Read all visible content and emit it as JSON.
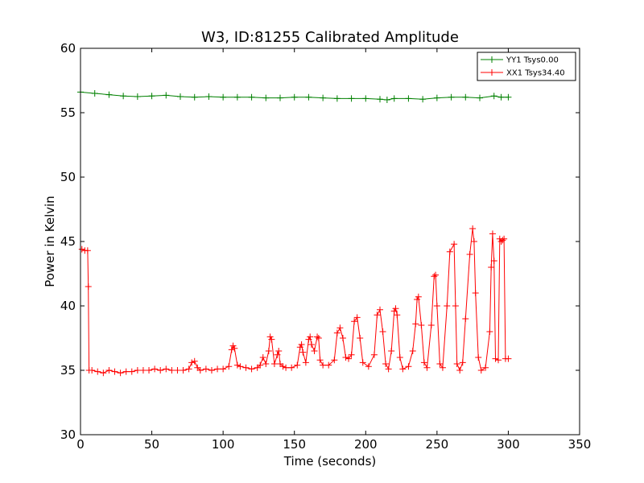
{
  "chart_data": {
    "type": "line",
    "title": "W3, ID:81255 Calibrated Amplitude",
    "xlabel": "Time (seconds)",
    "ylabel": "Power in Kelvin",
    "xlim": [
      0,
      350
    ],
    "ylim": [
      30,
      60
    ],
    "xticks": [
      0,
      50,
      100,
      150,
      200,
      250,
      300,
      350
    ],
    "yticks": [
      30,
      35,
      40,
      45,
      50,
      55,
      60
    ],
    "grid": false,
    "legend_position": "top-right",
    "marker": "+",
    "series": [
      {
        "name": "YY1 Tsys0.00",
        "color": "#008000",
        "x": [
          0,
          10,
          20,
          30,
          40,
          50,
          60,
          70,
          80,
          90,
          100,
          110,
          120,
          130,
          140,
          150,
          160,
          170,
          180,
          190,
          200,
          210,
          215,
          220,
          230,
          240,
          250,
          260,
          270,
          280,
          290,
          295,
          300
        ],
        "y": [
          56.6,
          56.5,
          56.4,
          56.3,
          56.25,
          56.3,
          56.35,
          56.25,
          56.2,
          56.25,
          56.2,
          56.2,
          56.2,
          56.15,
          56.15,
          56.2,
          56.2,
          56.15,
          56.1,
          56.1,
          56.1,
          56.05,
          56.0,
          56.1,
          56.1,
          56.05,
          56.15,
          56.2,
          56.2,
          56.15,
          56.3,
          56.2,
          56.2
        ]
      },
      {
        "name": "XX1 Tsys34.40",
        "color": "#ff0000",
        "x": [
          1,
          3,
          5,
          5.5,
          6,
          8,
          12,
          16,
          20,
          24,
          28,
          32,
          36,
          40,
          44,
          48,
          52,
          56,
          60,
          64,
          68,
          72,
          76,
          78,
          80,
          82,
          84,
          88,
          92,
          96,
          100,
          104,
          106,
          107,
          108,
          110,
          112,
          116,
          120,
          124,
          126,
          128,
          130,
          132,
          133,
          134,
          136,
          138,
          139,
          140,
          142,
          144,
          148,
          152,
          154,
          155,
          156,
          158,
          160,
          161,
          162,
          164,
          166,
          167,
          168,
          170,
          174,
          178,
          180,
          182,
          184,
          186,
          188,
          190,
          192,
          194,
          196,
          198,
          202,
          206,
          208,
          210,
          212,
          214,
          216,
          218,
          220,
          221,
          222,
          224,
          226,
          230,
          233,
          235,
          236,
          237,
          239,
          241,
          243,
          246,
          248,
          249,
          250,
          252,
          254,
          257,
          259,
          262,
          263,
          264,
          266,
          268,
          270,
          273,
          275,
          276,
          277,
          279,
          281,
          284,
          287,
          288,
          289,
          290,
          291,
          293,
          294,
          295,
          296,
          297,
          298,
          300
        ],
        "y": [
          44.4,
          44.3,
          44.3,
          41.5,
          35.0,
          35.0,
          34.9,
          34.8,
          35.0,
          34.9,
          34.8,
          34.9,
          34.9,
          35.0,
          35.0,
          35.0,
          35.1,
          35.0,
          35.1,
          35.0,
          35.0,
          35.0,
          35.1,
          35.6,
          35.7,
          35.2,
          35.0,
          35.1,
          35.0,
          35.1,
          35.1,
          35.3,
          36.6,
          36.9,
          36.7,
          35.4,
          35.3,
          35.2,
          35.1,
          35.2,
          35.4,
          36.0,
          35.5,
          36.5,
          37.6,
          37.4,
          35.5,
          36.2,
          36.5,
          35.5,
          35.3,
          35.2,
          35.2,
          35.4,
          36.8,
          37.0,
          36.4,
          35.6,
          37.4,
          37.6,
          37.0,
          36.5,
          37.6,
          37.5,
          35.8,
          35.4,
          35.4,
          35.8,
          37.9,
          38.3,
          37.5,
          36.0,
          35.9,
          36.2,
          38.8,
          39.1,
          37.5,
          35.6,
          35.3,
          36.2,
          39.3,
          39.7,
          38.0,
          35.5,
          35.1,
          36.5,
          39.6,
          39.8,
          39.3,
          36.0,
          35.1,
          35.3,
          36.5,
          38.6,
          40.5,
          40.7,
          38.5,
          35.6,
          35.2,
          38.5,
          42.3,
          42.4,
          40.0,
          35.5,
          35.2,
          40.0,
          44.2,
          44.8,
          40.0,
          35.5,
          35.0,
          35.6,
          39.0,
          44.0,
          46.0,
          45.0,
          41.0,
          36.0,
          35.0,
          35.2,
          38.0,
          43.0,
          45.6,
          43.5,
          35.9,
          35.8,
          45.2,
          45.0,
          45.1,
          45.2,
          35.9,
          35.9
        ]
      }
    ]
  }
}
